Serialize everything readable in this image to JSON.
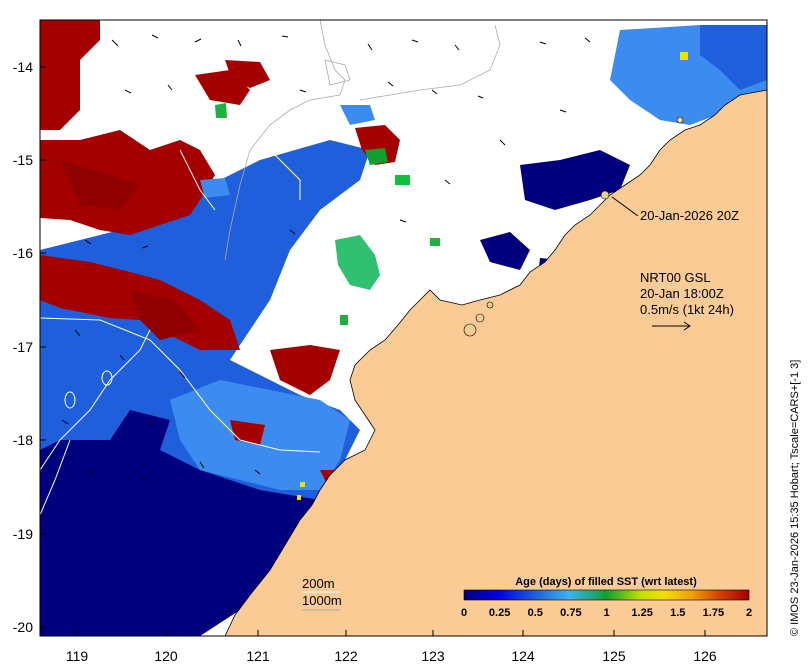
{
  "map": {
    "lon_ticks": [
      "119",
      "120",
      "121",
      "122",
      "123",
      "124",
      "125",
      "126"
    ],
    "lat_ticks": [
      "-14",
      "-15",
      "-16",
      "-17",
      "-18",
      "-19",
      "-20"
    ],
    "annotation_date": "20-Jan-2026 20Z",
    "vector_title": "NRT00 GSL",
    "vector_time": "20-Jan 18:00Z",
    "vector_scale": "0.5m/s (1kt 24h)",
    "depth_200": "200m",
    "depth_1000": "1000m",
    "side_credit": "© IMOS 23-Jan-2026 15:35 Hobart; Tscale=CARS+[-1 3]"
  },
  "colorbar": {
    "title": "Age (days) of filled SST (wrt latest)",
    "ticks": [
      "0",
      "0.25",
      "0.5",
      "0.75",
      "1",
      "1.25",
      "1.5",
      "1.75",
      "2"
    ],
    "range": [
      0,
      2
    ]
  },
  "colors": {
    "land": "#fbcb96",
    "ocean_deep": "#00007f",
    "ocean_blue": "#1f5fdc",
    "ocean_light": "#3c8cf0",
    "stale": "#a50000",
    "cloud": "#ffffff"
  }
}
